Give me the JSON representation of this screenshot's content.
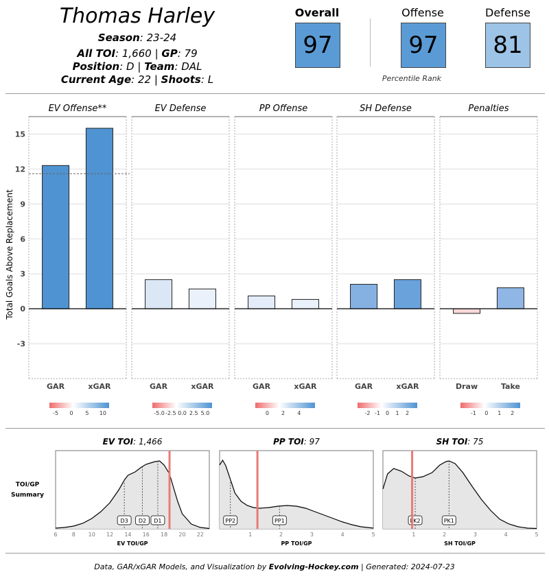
{
  "player": {
    "name": "Thomas Harley",
    "season_label": "Season",
    "season": ": 23-24",
    "toi_label": "All TOI",
    "toi": ": 1,660 | ",
    "gp_label": "GP",
    "gp": ": 79",
    "position_label": "Position",
    "position": ": D | ",
    "team_label": "Team",
    "team": ": DAL",
    "age_label": "Current Age",
    "age": ": 22 | ",
    "shoots_label": "Shoots",
    "shoots": ": L"
  },
  "ratings": {
    "overall_label": "Overall",
    "overall": "97",
    "offense_label": "Offense",
    "offense": "97",
    "defense_label": "Defense",
    "defense": "81",
    "percentile_label": "Percentile Rank",
    "colors": {
      "overall": "#5b9bd5",
      "offense": "#5b9bd5",
      "defense": "#9dc3e6"
    }
  },
  "chart_data": [
    {
      "type": "bar",
      "ylabel": "Total Goals Above Replacement",
      "ylim": [
        -6,
        16.5
      ],
      "yticks": [
        -3,
        0,
        3,
        6,
        9,
        12,
        15
      ],
      "panels": [
        {
          "title": "EV Offense**",
          "categories": [
            "GAR",
            "xGAR"
          ],
          "values": [
            12.3,
            15.5
          ],
          "colors": [
            "#4f93d2",
            "#4f93d2"
          ],
          "reference_line": 11.6,
          "legend_ticks": [
            "-5",
            "0",
            "5",
            "10"
          ],
          "legend_range": [
            -7,
            12
          ]
        },
        {
          "title": "EV Defense",
          "categories": [
            "GAR",
            "xGAR"
          ],
          "values": [
            2.5,
            1.7
          ],
          "colors": [
            "#dbe7f5",
            "#eaf1fa"
          ],
          "legend_ticks": [
            "-5.0",
            "-2.5",
            "0.0",
            "2.5",
            "5.0"
          ],
          "legend_range": [
            -6.5,
            6.5
          ]
        },
        {
          "title": "PP Offense",
          "categories": [
            "GAR",
            "xGAR"
          ],
          "values": [
            1.1,
            0.8
          ],
          "colors": [
            "#e3ecf8",
            "#eaf1fa"
          ],
          "legend_ticks": [
            "0",
            "2",
            "4"
          ],
          "legend_range": [
            -1.5,
            6
          ]
        },
        {
          "title": "SH Defense",
          "categories": [
            "GAR",
            "xGAR"
          ],
          "values": [
            2.1,
            2.5
          ],
          "colors": [
            "#84b1e2",
            "#6aa2dc"
          ],
          "legend_ticks": [
            "-2",
            "-1",
            "0",
            "1",
            "2"
          ],
          "legend_range": [
            -3,
            3
          ]
        },
        {
          "title": "Penalties",
          "categories": [
            "Draw",
            "Take"
          ],
          "values": [
            -0.4,
            1.8
          ],
          "colors": [
            "#f8d8d8",
            "#8fb6e4"
          ],
          "legend_ticks": [
            "-1",
            "0",
            "1",
            "2"
          ],
          "legend_range": [
            -2,
            2.6
          ]
        }
      ]
    },
    {
      "type": "area",
      "side_label": "TOI/GP Summary",
      "panels": [
        {
          "title_label": "EV TOI",
          "title_value": ": 1,466",
          "xlabel": "EV TOI/GP",
          "xlim": [
            6,
            23
          ],
          "xticks": [
            6,
            8,
            10,
            12,
            14,
            16,
            18,
            20,
            22
          ],
          "player_value": 18.6,
          "markers": [
            {
              "label": "D3",
              "x": 13.6
            },
            {
              "label": "D2",
              "x": 15.6
            },
            {
              "label": "D1",
              "x": 17.3
            }
          ],
          "density": [
            [
              6,
              0.01
            ],
            [
              7,
              0.02
            ],
            [
              8,
              0.04
            ],
            [
              9,
              0.08
            ],
            [
              10,
              0.15
            ],
            [
              11,
              0.25
            ],
            [
              12,
              0.38
            ],
            [
              13,
              0.57
            ],
            [
              13.6,
              0.71
            ],
            [
              14,
              0.78
            ],
            [
              14.8,
              0.83
            ],
            [
              15.5,
              0.9
            ],
            [
              16,
              0.94
            ],
            [
              16.5,
              0.96
            ],
            [
              17,
              0.98
            ],
            [
              17.5,
              0.99
            ],
            [
              18,
              0.93
            ],
            [
              18.6,
              0.8
            ],
            [
              19,
              0.62
            ],
            [
              19.5,
              0.4
            ],
            [
              20,
              0.22
            ],
            [
              21,
              0.07
            ],
            [
              22,
              0.02
            ],
            [
              23,
              0.005
            ]
          ]
        },
        {
          "title_label": "PP TOI",
          "title_value": ": 97",
          "xlabel": "PP TOI/GP",
          "xlim": [
            0,
            5
          ],
          "xticks": [
            1,
            2,
            3,
            4,
            5
          ],
          "player_value": 1.23,
          "markers": [
            {
              "label": "PP2",
              "x": 0.35
            },
            {
              "label": "PP1",
              "x": 1.95
            }
          ],
          "density": [
            [
              0,
              0.93
            ],
            [
              0.1,
              1.0
            ],
            [
              0.2,
              0.92
            ],
            [
              0.35,
              0.72
            ],
            [
              0.5,
              0.52
            ],
            [
              0.7,
              0.4
            ],
            [
              0.9,
              0.34
            ],
            [
              1.1,
              0.31
            ],
            [
              1.3,
              0.3
            ],
            [
              1.6,
              0.31
            ],
            [
              1.9,
              0.33
            ],
            [
              2.2,
              0.34
            ],
            [
              2.5,
              0.33
            ],
            [
              2.8,
              0.3
            ],
            [
              3.1,
              0.25
            ],
            [
              3.4,
              0.2
            ],
            [
              3.7,
              0.15
            ],
            [
              4.0,
              0.1
            ],
            [
              4.3,
              0.06
            ],
            [
              4.6,
              0.03
            ],
            [
              5,
              0.01
            ]
          ]
        },
        {
          "title_label": "SH TOI",
          "title_value": ": 75",
          "xlabel": "SH TOI/GP",
          "xlim": [
            0,
            5
          ],
          "xticks": [
            1,
            2,
            3,
            4,
            5
          ],
          "player_value": 0.95,
          "markers": [
            {
              "label": "PK2",
              "x": 1.05
            },
            {
              "label": "PK1",
              "x": 2.15
            }
          ],
          "density": [
            [
              0,
              0.58
            ],
            [
              0.15,
              0.8
            ],
            [
              0.35,
              0.88
            ],
            [
              0.6,
              0.84
            ],
            [
              0.85,
              0.77
            ],
            [
              1.05,
              0.74
            ],
            [
              1.3,
              0.76
            ],
            [
              1.6,
              0.82
            ],
            [
              1.85,
              0.93
            ],
            [
              2.05,
              0.98
            ],
            [
              2.15,
              0.99
            ],
            [
              2.35,
              0.95
            ],
            [
              2.6,
              0.82
            ],
            [
              2.9,
              0.62
            ],
            [
              3.2,
              0.43
            ],
            [
              3.5,
              0.27
            ],
            [
              3.8,
              0.14
            ],
            [
              4.1,
              0.07
            ],
            [
              4.4,
              0.03
            ],
            [
              4.7,
              0.01
            ],
            [
              5,
              0.005
            ]
          ]
        }
      ]
    }
  ],
  "footer": {
    "prefix": "Data, GAR/xGAR Models, and Visualization by ",
    "brand": "Evolving-Hockey.com",
    "suffix": " | Generated: 2024-07-23"
  }
}
